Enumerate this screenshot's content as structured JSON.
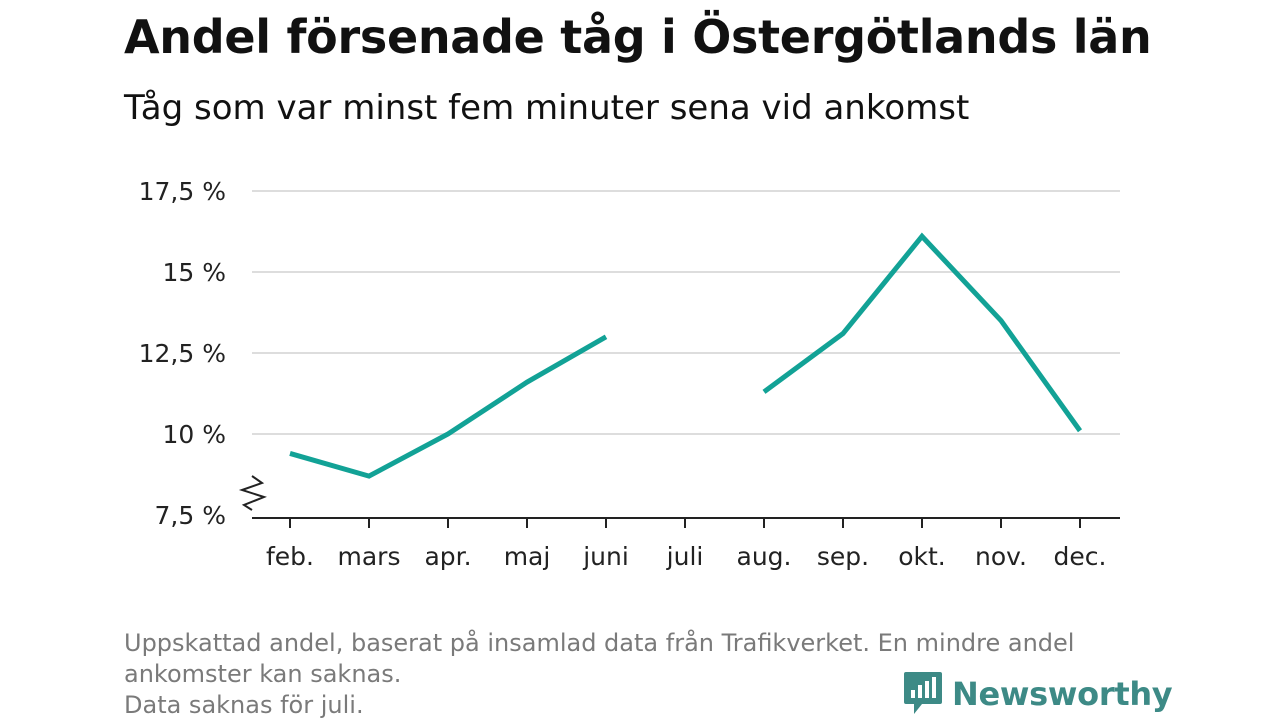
{
  "header": {
    "title": "Andel försenade tåg i Östergötlands län",
    "subtitle": "Tåg som var minst fem minuter sena vid ankomst"
  },
  "chart_data": {
    "type": "line",
    "categories": [
      "feb.",
      "mars",
      "apr.",
      "maj",
      "juni",
      "juli",
      "aug.",
      "sep.",
      "okt.",
      "nov.",
      "dec."
    ],
    "series": [
      {
        "values": [
          9.4,
          8.7,
          10.0,
          11.6,
          13.0,
          null,
          11.3,
          13.1,
          16.1,
          13.5,
          10.1
        ]
      }
    ],
    "y_ticks": [
      {
        "value": 7.5,
        "label": "7,5 %"
      },
      {
        "value": 10,
        "label": "10 %"
      },
      {
        "value": 12.5,
        "label": "12,5 %"
      },
      {
        "value": 15,
        "label": "15 %"
      },
      {
        "value": 17.5,
        "label": "17,5 %"
      }
    ],
    "ylim": [
      7.5,
      17.5
    ],
    "axis_break": true,
    "grid": true,
    "line_color": "#12a296",
    "xlabel": "",
    "ylabel": ""
  },
  "footer": {
    "note_lines": [
      "Uppskattad andel, baserat på insamlad data från Trafikverket. En mindre andel",
      "ankomster kan saknas.",
      "Data saknas för juli."
    ],
    "brand": "Newsworthy",
    "brand_icon": "newsworthy-logo-icon",
    "brand_color": "#3d8a86"
  }
}
